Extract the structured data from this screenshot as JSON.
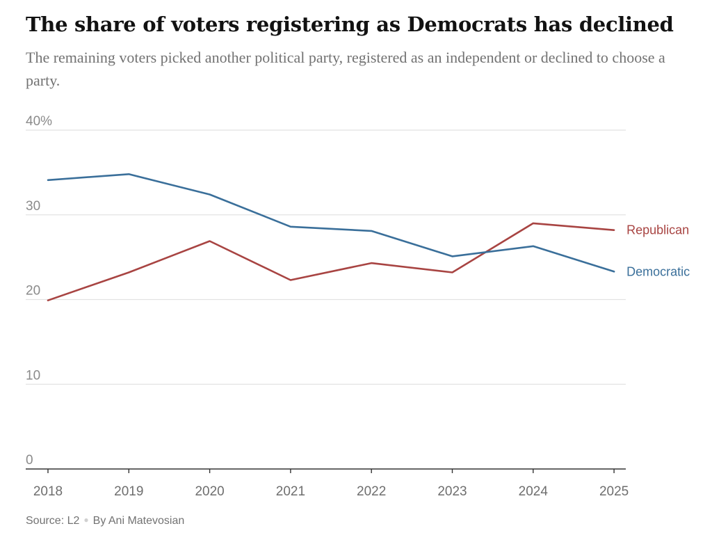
{
  "chart_data": {
    "type": "line",
    "title": "The share of voters registering as Democrats has declined",
    "subtitle": "The remaining voters picked another political party, registered as an independent or declined to choose a party.",
    "x": [
      2018,
      2019,
      2020,
      2021,
      2022,
      2023,
      2024,
      2025
    ],
    "x_tick_labels": [
      "2018",
      "2019",
      "2020",
      "2021",
      "2022",
      "2023",
      "2024",
      "2025"
    ],
    "ylim": [
      0,
      40
    ],
    "y_ticks": [
      0,
      10,
      20,
      30,
      40
    ],
    "y_tick_labels": [
      "0",
      "10",
      "20",
      "30",
      "40%"
    ],
    "grid": true,
    "legend": "inline labels at right end of lines",
    "series": [
      {
        "name": "Republican",
        "color": "#a84442",
        "values": [
          19.9,
          23.2,
          26.9,
          22.3,
          24.3,
          23.2,
          29.0,
          28.2
        ]
      },
      {
        "name": "Democratic",
        "color": "#3a6f9a",
        "values": [
          34.1,
          34.8,
          32.4,
          28.6,
          28.1,
          25.1,
          26.3,
          23.3
        ]
      }
    ]
  },
  "footer": {
    "source": "Source: L2",
    "byline": "By Ani Matevosian"
  }
}
